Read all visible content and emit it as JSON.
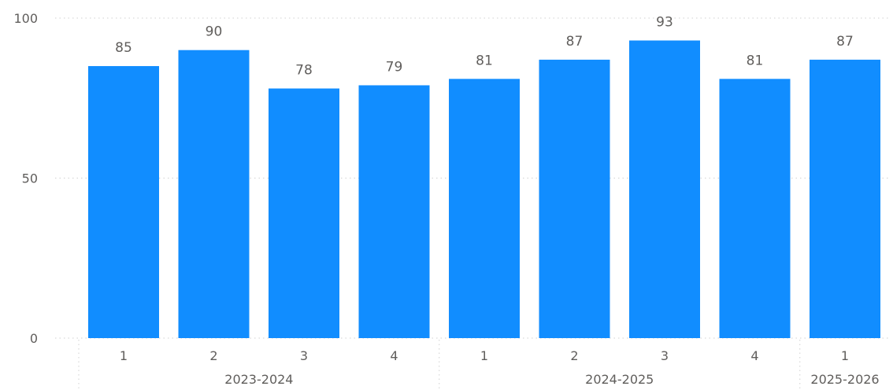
{
  "chart_data": {
    "type": "bar",
    "categories": [
      {
        "label": "1",
        "group": "2023-2024"
      },
      {
        "label": "2",
        "group": "2023-2024"
      },
      {
        "label": "3",
        "group": "2023-2024"
      },
      {
        "label": "4",
        "group": "2023-2024"
      },
      {
        "label": "1",
        "group": "2024-2025"
      },
      {
        "label": "2",
        "group": "2024-2025"
      },
      {
        "label": "3",
        "group": "2024-2025"
      },
      {
        "label": "4",
        "group": "2024-2025"
      },
      {
        "label": "1",
        "group": "2025-2026"
      }
    ],
    "groups": [
      "2023-2024",
      "2024-2025",
      "2025-2026"
    ],
    "series": [
      {
        "values": [
          85,
          90,
          78,
          79,
          81,
          87,
          93,
          81,
          87
        ],
        "color": "#118dff"
      }
    ],
    "data_labels": [
      "85",
      "90",
      "78",
      "79",
      "81",
      "87",
      "93",
      "81",
      "87"
    ],
    "y_ticks": [
      "0",
      "50",
      "100"
    ],
    "ylim": [
      0,
      100
    ],
    "grid": "horizontal-dotted",
    "colors": {
      "bar": "#118dff",
      "text": "#605e5c",
      "grid": "#d0d0d0"
    }
  }
}
